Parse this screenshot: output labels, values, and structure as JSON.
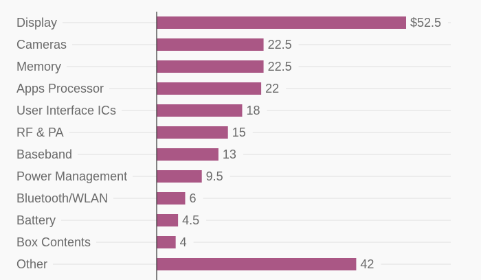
{
  "chart_data": {
    "type": "bar",
    "orientation": "horizontal",
    "title": "",
    "xlabel": "",
    "ylabel": "",
    "value_prefix_first": "$",
    "categories": [
      "Display",
      "Cameras",
      "Memory",
      "Apps Processor",
      "User Interface ICs",
      "RF & PA",
      "Baseband",
      "Power Management",
      "Bluetooth/WLAN",
      "Battery",
      "Box Contents",
      "Other"
    ],
    "values": [
      52.5,
      22.5,
      22.5,
      22,
      18,
      15,
      13,
      9.5,
      6,
      4.5,
      4,
      42
    ],
    "value_labels": [
      "$52.5",
      "22.5",
      "22.5",
      "22",
      "18",
      "15",
      "13",
      "9.5",
      "6",
      "4.5",
      "4",
      "42"
    ],
    "xlim": [
      0,
      62
    ],
    "grid": true,
    "legend": "none",
    "bar_color": "#aa5785"
  }
}
